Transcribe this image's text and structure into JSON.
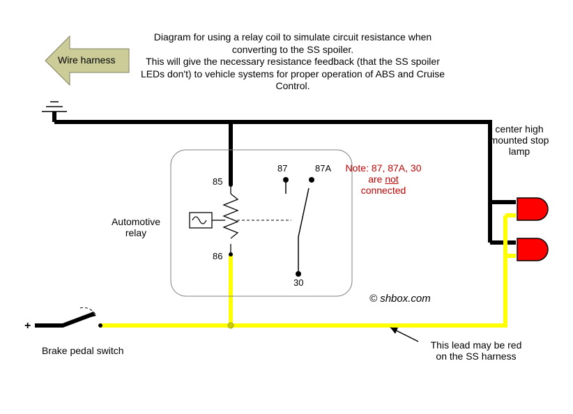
{
  "description": "Diagram for using a relay coil to simulate circuit resistance when converting to the SS spoiler.\nThis will give the necessary resistance feedback (that the SS spoiler LEDs don't) to vehicle systems for proper operation of ABS and Cruise Control.",
  "arrow_label": "Wire harness",
  "relay_label": "Automotive relay",
  "note_red_1": "Note: 87, 87A, 30 are ",
  "note_red_u": "not",
  "note_red_2": " connected",
  "credit": "© shbox.com",
  "bps_label": "Brake pedal switch",
  "lead_label": "This lead may be red on the SS harness",
  "chmls_label": "center high mounted stop lamp",
  "pin85": "85",
  "pin86": "86",
  "pin87": "87",
  "pin87a": "87A",
  "pin30": "30",
  "plus": "+",
  "colors": {
    "wire_ground": "#000000",
    "wire_power": "#ffff00",
    "led_fill": "#ff0000",
    "arrow_fill": "#cccc99",
    "note_color": "#c00000"
  }
}
